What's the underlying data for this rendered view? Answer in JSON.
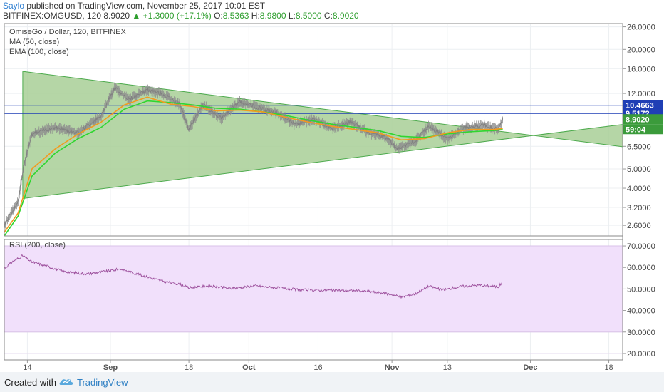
{
  "header": {
    "author": "Saylo",
    "published_text": "published on TradingView.com, November 25, 2017 10:01 EST",
    "symbol_line": "BITFINEX:OMGUSD, 120",
    "last": "8.9020",
    "change": "+1.3000 (+17.1%)",
    "o_label": "O:",
    "o_value": "8.5363",
    "h_label": "H:",
    "h_value": "8.9800",
    "l_label": "L:",
    "l_value": "8.5000",
    "c_label": "C:",
    "c_value": "8.9020"
  },
  "main_pane": {
    "title": "OmiseGo / Dollar, 120, BITFINEX",
    "ma_label": "MA (50, close)",
    "ema_label": "EMA (100, close)",
    "price_tag": "8.9020",
    "countdown_tag": "59:04"
  },
  "rsi_pane": {
    "title": "RSI (200, close)"
  },
  "footer": {
    "created_with": "Created with",
    "brand": "TradingView"
  },
  "colors": {
    "candles": "#8f8f8f",
    "ma": "#f29a1f",
    "ema": "#30d630",
    "triangle_fill": "#a8cf97",
    "triangle_stroke": "#4caa4c",
    "level_line": "#1f3fb5",
    "rsi_band": "#f1e0fb",
    "rsi_line": "#9c4f9c",
    "price_tag_bg": "#3b9b3b"
  },
  "chart_data": [
    {
      "type": "line",
      "pane": "price",
      "scale": "log",
      "y_axis_ticks": [
        "26.0000",
        "20.0000",
        "16.0000",
        "12.0000",
        "10.4663",
        "9.5172",
        "8.9020",
        "6.5000",
        "5.0000",
        "4.0000",
        "3.2000",
        "2.6000"
      ],
      "y_tick_values": [
        26,
        20,
        16,
        12,
        6.5,
        5,
        4,
        3.2,
        2.6
      ],
      "x_axis_ticks": [
        "14",
        "Sep",
        "18",
        "Oct",
        "16",
        "Nov",
        "13",
        "Dec",
        "18"
      ],
      "ylim": [
        2.3,
        27
      ],
      "series": [
        {
          "name": "MA (50, close)",
          "points": [
            [
              "Aug 9",
              2.4
            ],
            [
              "Aug 12",
              3.0
            ],
            [
              "Aug 15",
              5.0
            ],
            [
              "Aug 20",
              6.3
            ],
            [
              "Aug 25",
              7.5
            ],
            [
              "Aug 30",
              8.6
            ],
            [
              "Sep 4",
              10.5
            ],
            [
              "Sep 9",
              11.5
            ],
            [
              "Sep 14",
              10.6
            ],
            [
              "Sep 19",
              10.3
            ],
            [
              "Sep 24",
              9.8
            ],
            [
              "Sep 29",
              9.9
            ],
            [
              "Oct 4",
              9.7
            ],
            [
              "Oct 9",
              9.1
            ],
            [
              "Oct 14",
              8.6
            ],
            [
              "Oct 19",
              8.2
            ],
            [
              "Oct 24",
              7.9
            ],
            [
              "Oct 29",
              7.6
            ],
            [
              "Nov 3",
              7.0
            ],
            [
              "Nov 8",
              7.1
            ],
            [
              "Nov 13",
              7.6
            ],
            [
              "Nov 18",
              7.9
            ],
            [
              "Nov 23",
              7.9
            ],
            [
              "Nov 25",
              8.0
            ]
          ]
        },
        {
          "name": "EMA (100, close)",
          "points": [
            [
              "Aug 9",
              2.3
            ],
            [
              "Aug 12",
              2.9
            ],
            [
              "Aug 15",
              4.6
            ],
            [
              "Aug 20",
              6.0
            ],
            [
              "Aug 25",
              7.1
            ],
            [
              "Aug 30",
              8.1
            ],
            [
              "Sep 4",
              10.0
            ],
            [
              "Sep 9",
              11.0
            ],
            [
              "Sep 14",
              10.8
            ],
            [
              "Sep 19",
              10.5
            ],
            [
              "Sep 24",
              10.1
            ],
            [
              "Sep 29",
              10.0
            ],
            [
              "Oct 4",
              9.7
            ],
            [
              "Oct 9",
              9.3
            ],
            [
              "Oct 14",
              8.8
            ],
            [
              "Oct 19",
              8.4
            ],
            [
              "Oct 24",
              8.1
            ],
            [
              "Oct 29",
              7.8
            ],
            [
              "Nov 3",
              7.3
            ],
            [
              "Nov 8",
              7.2
            ],
            [
              "Nov 13",
              7.5
            ],
            [
              "Nov 18",
              7.7
            ],
            [
              "Nov 23",
              7.8
            ],
            [
              "Nov 25",
              7.9
            ]
          ]
        },
        {
          "name": "Close",
          "points": [
            [
              "Aug 9",
              2.6
            ],
            [
              "Aug 12",
              3.4
            ],
            [
              "Aug 15",
              7.5
            ],
            [
              "Aug 20",
              8.1
            ],
            [
              "Aug 25",
              7.6
            ],
            [
              "Aug 30",
              9.2
            ],
            [
              "Sep 2",
              12.8
            ],
            [
              "Sep 5",
              11.2
            ],
            [
              "Sep 9",
              12.5
            ],
            [
              "Sep 12",
              12.0
            ],
            [
              "Sep 16",
              10.6
            ],
            [
              "Sep 18",
              7.8
            ],
            [
              "Sep 21",
              10.5
            ],
            [
              "Sep 25",
              9.0
            ],
            [
              "Sep 29",
              10.9
            ],
            [
              "Oct 3",
              10.2
            ],
            [
              "Oct 7",
              9.6
            ],
            [
              "Oct 11",
              8.4
            ],
            [
              "Oct 15",
              8.9
            ],
            [
              "Oct 19",
              8.0
            ],
            [
              "Oct 23",
              8.6
            ],
            [
              "Oct 27",
              7.6
            ],
            [
              "Oct 31",
              7.2
            ],
            [
              "Nov 2",
              6.3
            ],
            [
              "Nov 6",
              6.9
            ],
            [
              "Nov 9",
              8.2
            ],
            [
              "Nov 13",
              7.1
            ],
            [
              "Nov 17",
              8.1
            ],
            [
              "Nov 21",
              8.3
            ],
            [
              "Nov 24",
              7.9
            ],
            [
              "Nov 25",
              8.902
            ]
          ]
        }
      ],
      "horizontal_levels": [
        10.4663,
        9.5172
      ],
      "triangle": {
        "upper_line": [
          [
            "Aug 13",
            15.5
          ],
          [
            "Dec 25",
            6.3
          ]
        ],
        "lower_line": [
          [
            "Aug 13",
            3.55
          ],
          [
            "Dec 25",
            8.6
          ]
        ]
      }
    },
    {
      "type": "line",
      "pane": "rsi",
      "title": "RSI (200, close)",
      "y_axis_ticks": [
        "70.0000",
        "60.0000",
        "50.0000",
        "40.0000",
        "30.0000",
        "20.0000"
      ],
      "band": [
        30,
        70
      ],
      "ylim": [
        17,
        73
      ],
      "x_axis_ticks": [
        "14",
        "Sep",
        "18",
        "Oct",
        "16",
        "Nov",
        "13",
        "Dec",
        "18"
      ],
      "series": [
        {
          "name": "RSI (200, close)",
          "points": [
            [
              "Aug 9",
              59.5
            ],
            [
              "Aug 11",
              63.0
            ],
            [
              "Aug 13",
              65.5
            ],
            [
              "Aug 15",
              62.5
            ],
            [
              "Aug 18",
              60.8
            ],
            [
              "Aug 22",
              58.0
            ],
            [
              "Aug 27",
              57.0
            ],
            [
              "Sep 1",
              58.5
            ],
            [
              "Sep 3",
              59.3
            ],
            [
              "Sep 7",
              56.8
            ],
            [
              "Sep 12",
              53.8
            ],
            [
              "Sep 16",
              52.2
            ],
            [
              "Sep 18",
              50.5
            ],
            [
              "Sep 22",
              51.5
            ],
            [
              "Sep 27",
              50.2
            ],
            [
              "Oct 2",
              51.5
            ],
            [
              "Oct 7",
              50.6
            ],
            [
              "Oct 12",
              49.6
            ],
            [
              "Oct 17",
              49.4
            ],
            [
              "Oct 22",
              49.3
            ],
            [
              "Oct 27",
              48.9
            ],
            [
              "Nov 1",
              47.5
            ],
            [
              "Nov 3",
              46.2
            ],
            [
              "Nov 6",
              47.7
            ],
            [
              "Nov 9",
              51.3
            ],
            [
              "Nov 12",
              49.5
            ],
            [
              "Nov 16",
              51.2
            ],
            [
              "Nov 20",
              51.8
            ],
            [
              "Nov 24",
              51.0
            ],
            [
              "Nov 25",
              53.2
            ]
          ]
        }
      ]
    }
  ]
}
